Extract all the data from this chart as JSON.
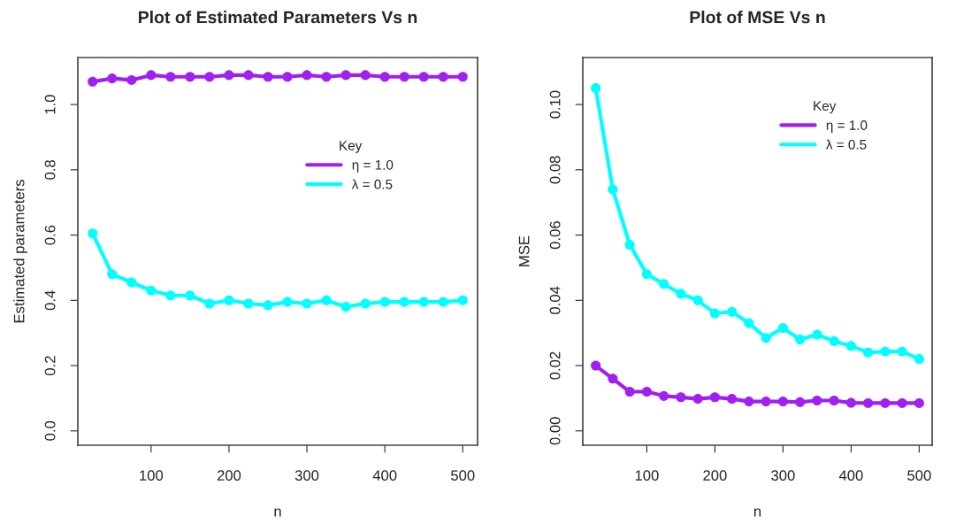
{
  "chart_data": [
    {
      "type": "line",
      "title": "Plot of Estimated Parameters Vs n",
      "xlabel": "n",
      "ylabel": "Estimated parameters",
      "legend_title": "Key",
      "legend": "right",
      "marker": "circle",
      "line_style": "solid",
      "grid": false,
      "x": [
        25,
        50,
        75,
        100,
        125,
        150,
        175,
        200,
        225,
        250,
        275,
        300,
        325,
        350,
        375,
        400,
        425,
        450,
        475,
        500
      ],
      "xlim": [
        6,
        519
      ],
      "xticks": [
        100,
        200,
        300,
        400,
        500
      ],
      "ylim": [
        -0.044,
        1.144
      ],
      "yticks": [
        {
          "value": 0,
          "label": "0.0"
        },
        0.2,
        0.4,
        0.6,
        0.8,
        {
          "value": 1,
          "label": "1.0"
        }
      ],
      "series": [
        {
          "name": "η = 1.0",
          "color": "#a020f0",
          "values": [
            1.07,
            1.08,
            1.075,
            1.09,
            1.085,
            1.085,
            1.085,
            1.09,
            1.09,
            1.085,
            1.085,
            1.09,
            1.085,
            1.09,
            1.09,
            1.085,
            1.085,
            1.085,
            1.085,
            1.085
          ]
        },
        {
          "name": "λ = 0.5",
          "color": "#00ffff",
          "values": [
            0.605,
            0.48,
            0.455,
            0.43,
            0.415,
            0.415,
            0.39,
            0.4,
            0.39,
            0.385,
            0.395,
            0.39,
            0.4,
            0.38,
            0.39,
            0.395,
            0.395,
            0.395,
            0.395,
            0.4
          ]
        }
      ]
    },
    {
      "type": "line",
      "title": "Plot of MSE Vs n",
      "xlabel": "n",
      "ylabel": "MSE",
      "legend_title": "Key",
      "legend": "top right",
      "marker": "circle",
      "line_style": "solid",
      "grid": false,
      "x": [
        25,
        50,
        75,
        100,
        125,
        150,
        175,
        200,
        225,
        250,
        275,
        300,
        325,
        350,
        375,
        400,
        425,
        450,
        475,
        500
      ],
      "xlim": [
        6,
        519
      ],
      "xticks": [
        100,
        200,
        300,
        400,
        500
      ],
      "ylim": [
        -0.0044,
        0.1144
      ],
      "yticks": [
        {
          "value": 0,
          "label": "0.00"
        },
        {
          "value": 0.02,
          "label": "0.02"
        },
        {
          "value": 0.04,
          "label": "0.04"
        },
        {
          "value": 0.06,
          "label": "0.06"
        },
        {
          "value": 0.08,
          "label": "0.08"
        },
        {
          "value": 0.1,
          "label": "0.10"
        }
      ],
      "series": [
        {
          "name": "η = 1.0",
          "color": "#a020f0",
          "values": [
            0.02,
            0.016,
            0.012,
            0.012,
            0.0107,
            0.0103,
            0.0098,
            0.0103,
            0.0098,
            0.009,
            0.009,
            0.009,
            0.0088,
            0.0093,
            0.0093,
            0.0086,
            0.0085,
            0.0085,
            0.0085,
            0.0085
          ]
        },
        {
          "name": "λ = 0.5",
          "color": "#00ffff",
          "values": [
            0.105,
            0.074,
            0.057,
            0.048,
            0.045,
            0.042,
            0.04,
            0.036,
            0.0365,
            0.033,
            0.0285,
            0.0315,
            0.028,
            0.0295,
            0.0275,
            0.026,
            0.024,
            0.0243,
            0.0243,
            0.022
          ]
        }
      ]
    }
  ]
}
